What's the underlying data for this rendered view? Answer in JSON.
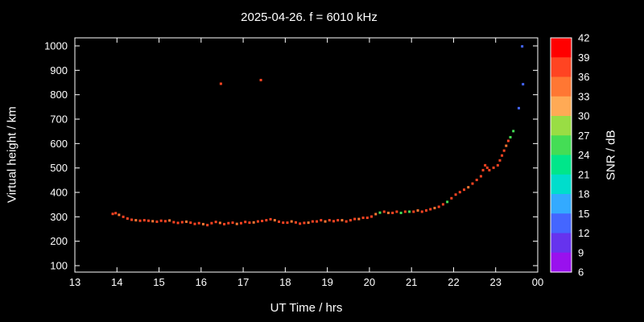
{
  "chart_data": {
    "type": "scatter",
    "title": "2025-04-26. f = 6010 kHz",
    "xlabel": "UT Time / hrs",
    "ylabel": "Virtual height / km",
    "background": "#000000",
    "frame_color": "#ffffff",
    "grid": "off",
    "xlim": [
      13,
      24
    ],
    "ylim": [
      100,
      1000
    ],
    "x_ticks": [
      {
        "value": 13,
        "label": "13"
      },
      {
        "value": 14,
        "label": "14"
      },
      {
        "value": 15,
        "label": "15"
      },
      {
        "value": 16,
        "label": "16"
      },
      {
        "value": 17,
        "label": "17"
      },
      {
        "value": 18,
        "label": "18"
      },
      {
        "value": 19,
        "label": "19"
      },
      {
        "value": 20,
        "label": "20"
      },
      {
        "value": 21,
        "label": "21"
      },
      {
        "value": 22,
        "label": "22"
      },
      {
        "value": 23,
        "label": "23"
      },
      {
        "value": 24,
        "label": "00"
      }
    ],
    "y_ticks": [
      100,
      200,
      300,
      400,
      500,
      600,
      700,
      800,
      900,
      1000
    ],
    "colorbar": {
      "label": "SNR / dB",
      "min": 6,
      "max": 42,
      "tick_values": [
        42,
        39,
        36,
        33,
        30,
        27,
        24,
        21,
        18,
        15,
        12,
        9,
        6
      ],
      "colors_top_to_bottom": [
        "#ff0000",
        "#ff4422",
        "#ff7733",
        "#ffaa55",
        "#99dd44",
        "#44dd55",
        "#00e68a",
        "#00ddcc",
        "#33aaff",
        "#4466ff",
        "#6633ee",
        "#9911ee"
      ]
    },
    "point_format": [
      "time_hrs",
      "virtual_height_km",
      "snr_db"
    ],
    "points": [
      [
        13.9,
        312,
        37
      ],
      [
        13.97,
        315,
        36
      ],
      [
        14.05,
        308,
        35
      ],
      [
        14.15,
        300,
        36
      ],
      [
        14.25,
        293,
        37
      ],
      [
        14.35,
        288,
        36
      ],
      [
        14.45,
        286,
        35
      ],
      [
        14.55,
        284,
        36
      ],
      [
        14.65,
        286,
        37
      ],
      [
        14.75,
        284,
        36
      ],
      [
        14.85,
        282,
        35
      ],
      [
        14.95,
        280,
        36
      ],
      [
        15.05,
        284,
        37
      ],
      [
        15.15,
        282,
        36
      ],
      [
        15.25,
        285,
        35
      ],
      [
        15.35,
        278,
        36
      ],
      [
        15.45,
        275,
        37
      ],
      [
        15.55,
        278,
        36
      ],
      [
        15.65,
        280,
        35
      ],
      [
        15.75,
        276,
        36
      ],
      [
        15.85,
        271,
        37
      ],
      [
        15.95,
        274,
        36
      ],
      [
        16.05,
        270,
        35
      ],
      [
        16.15,
        266,
        36
      ],
      [
        16.25,
        274,
        37
      ],
      [
        16.35,
        279,
        36
      ],
      [
        16.45,
        275,
        35
      ],
      [
        16.47,
        845,
        36
      ],
      [
        16.55,
        270,
        36
      ],
      [
        16.65,
        274,
        37
      ],
      [
        16.75,
        276,
        36
      ],
      [
        16.85,
        271,
        35
      ],
      [
        16.95,
        274,
        36
      ],
      [
        17.05,
        279,
        37
      ],
      [
        17.15,
        276,
        36
      ],
      [
        17.25,
        277,
        35
      ],
      [
        17.35,
        281,
        36
      ],
      [
        17.42,
        860,
        37
      ],
      [
        17.45,
        283,
        36
      ],
      [
        17.55,
        286,
        37
      ],
      [
        17.65,
        290,
        36
      ],
      [
        17.75,
        286,
        35
      ],
      [
        17.85,
        280,
        36
      ],
      [
        17.95,
        276,
        37
      ],
      [
        18.05,
        276,
        36
      ],
      [
        18.15,
        281,
        35
      ],
      [
        18.25,
        277,
        36
      ],
      [
        18.35,
        272,
        37
      ],
      [
        18.45,
        275,
        36
      ],
      [
        18.55,
        276,
        35
      ],
      [
        18.65,
        281,
        36
      ],
      [
        18.75,
        281,
        37
      ],
      [
        18.85,
        286,
        36
      ],
      [
        18.95,
        281,
        35
      ],
      [
        19.05,
        286,
        36
      ],
      [
        19.15,
        282,
        37
      ],
      [
        19.25,
        286,
        36
      ],
      [
        19.35,
        286,
        35
      ],
      [
        19.45,
        281,
        36
      ],
      [
        19.55,
        286,
        37
      ],
      [
        19.65,
        291,
        36
      ],
      [
        19.75,
        291,
        35
      ],
      [
        19.85,
        296,
        36
      ],
      [
        19.95,
        296,
        37
      ],
      [
        20.05,
        301,
        36
      ],
      [
        20.15,
        311,
        35
      ],
      [
        20.25,
        317,
        24
      ],
      [
        20.35,
        321,
        36
      ],
      [
        20.45,
        316,
        35
      ],
      [
        20.55,
        316,
        36
      ],
      [
        20.65,
        321,
        37
      ],
      [
        20.75,
        316,
        25
      ],
      [
        20.85,
        321,
        36
      ],
      [
        20.95,
        321,
        24
      ],
      [
        21.05,
        321,
        36
      ],
      [
        21.15,
        326,
        35
      ],
      [
        21.25,
        321,
        36
      ],
      [
        21.35,
        326,
        37
      ],
      [
        21.45,
        331,
        36
      ],
      [
        21.55,
        336,
        35
      ],
      [
        21.65,
        341,
        36
      ],
      [
        21.75,
        351,
        37
      ],
      [
        21.85,
        361,
        25
      ],
      [
        21.95,
        376,
        36
      ],
      [
        22.05,
        391,
        36
      ],
      [
        22.15,
        401,
        37
      ],
      [
        22.25,
        411,
        36
      ],
      [
        22.35,
        421,
        35
      ],
      [
        22.45,
        436,
        36
      ],
      [
        22.55,
        451,
        37
      ],
      [
        22.65,
        466,
        36
      ],
      [
        22.7,
        491,
        36
      ],
      [
        22.75,
        511,
        37
      ],
      [
        22.8,
        501,
        36
      ],
      [
        22.85,
        491,
        36
      ],
      [
        22.95,
        501,
        37
      ],
      [
        23.05,
        511,
        36
      ],
      [
        23.1,
        531,
        36
      ],
      [
        23.15,
        551,
        37
      ],
      [
        23.2,
        571,
        36
      ],
      [
        23.25,
        591,
        35
      ],
      [
        23.3,
        611,
        36
      ],
      [
        23.35,
        626,
        24
      ],
      [
        23.42,
        651,
        25
      ],
      [
        23.55,
        745,
        14
      ],
      [
        23.65,
        843,
        13
      ],
      [
        23.63,
        998,
        12
      ]
    ]
  }
}
